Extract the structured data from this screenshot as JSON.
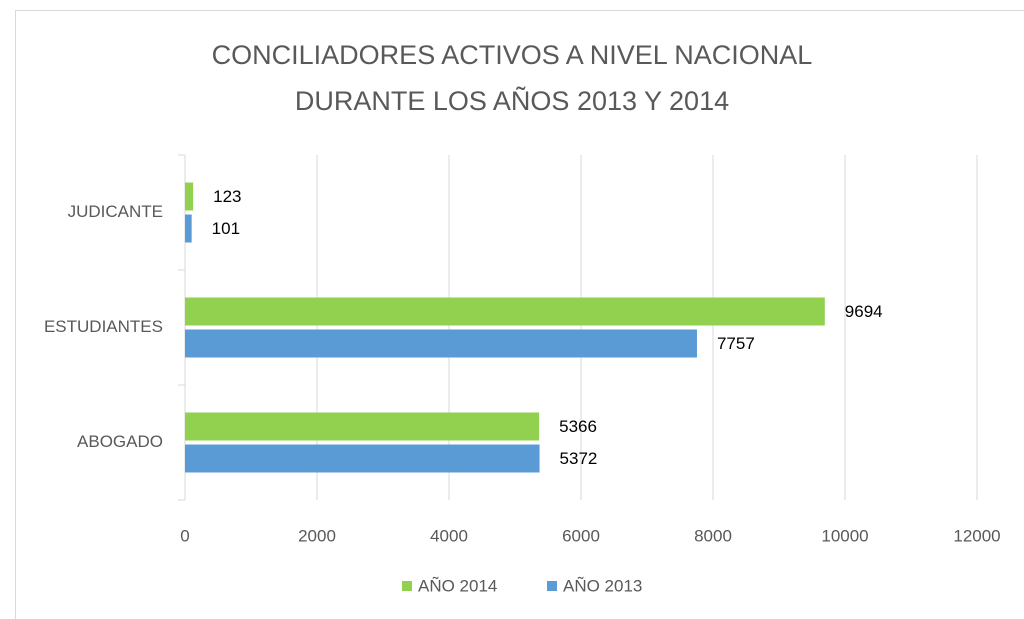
{
  "chart_data": {
    "type": "bar",
    "orientation": "horizontal",
    "title": [
      "CONCILIADORES ACTIVOS A NIVEL NACIONAL",
      "DURANTE LOS AÑOS 2013 Y 2014"
    ],
    "categories": [
      "ABOGADO",
      "ESTUDIANTES",
      "JUDICANTE"
    ],
    "series": [
      {
        "name": "AÑO 2014",
        "color": "#92d050",
        "values": [
          5366,
          9694,
          123
        ]
      },
      {
        "name": "AÑO 2013",
        "color": "#5b9bd5",
        "values": [
          5372,
          7757,
          101
        ]
      }
    ],
    "xlim": [
      0,
      12000
    ],
    "xticks": [
      0,
      2000,
      4000,
      6000,
      8000,
      10000,
      12000
    ],
    "grid": true,
    "legend": "bottom"
  }
}
